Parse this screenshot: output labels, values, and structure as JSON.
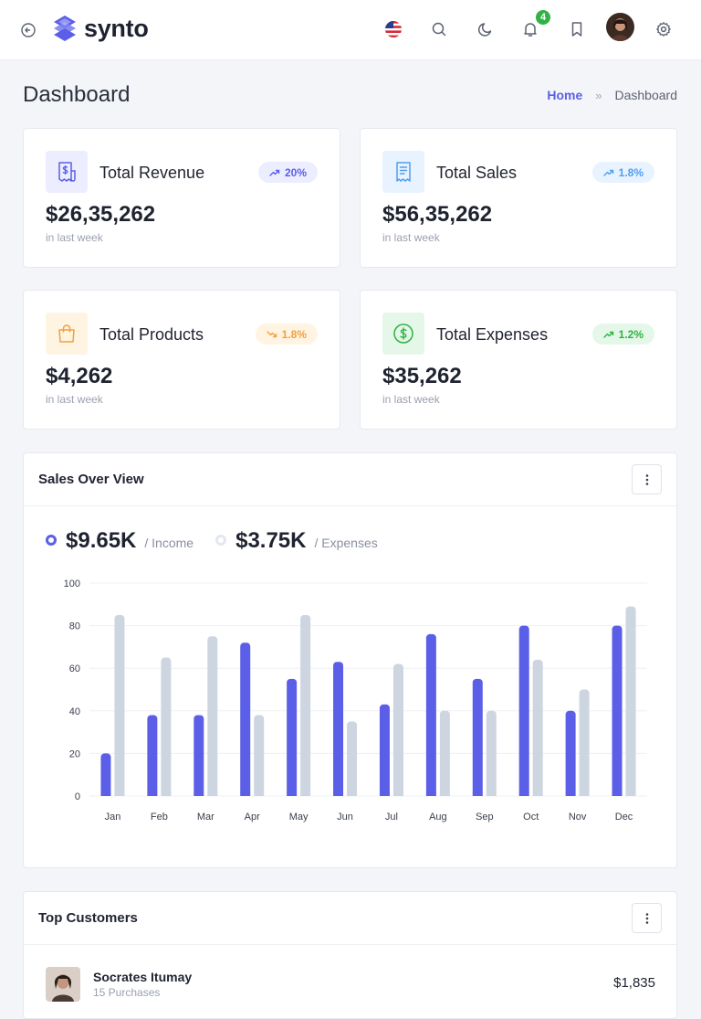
{
  "header": {
    "logo_text": "synto",
    "notification_count": "4",
    "icons": [
      "back-icon",
      "flag-icon",
      "search-icon",
      "moon-icon",
      "bell-icon",
      "bookmark-icon",
      "avatar",
      "gear-icon"
    ]
  },
  "page": {
    "title": "Dashboard",
    "breadcrumb": {
      "home": "Home",
      "separator": "»",
      "current": "Dashboard"
    }
  },
  "stats": [
    {
      "title": "Total Revenue",
      "value": "$26,35,262",
      "sub": "in last week",
      "change": "20%",
      "trend": "up",
      "icon": "receipt-dollar-icon",
      "accent": "#5b5fe8",
      "bg": "#eceeff"
    },
    {
      "title": "Total Sales",
      "value": "$56,35,262",
      "sub": "in last week",
      "change": "1.8%",
      "trend": "up",
      "icon": "receipt-lines-icon",
      "accent": "#4f9ef0",
      "bg": "#e8f3ff"
    },
    {
      "title": "Total Products",
      "value": "$4,262",
      "sub": "in last week",
      "change": "1.8%",
      "trend": "down",
      "icon": "shopping-bag-icon",
      "accent": "#f1a23d",
      "bg": "#fff4e1"
    },
    {
      "title": "Total Expenses",
      "value": "$35,262",
      "sub": "in last week",
      "change": "1.2%",
      "trend": "up",
      "icon": "dollar-circle-icon",
      "accent": "#2fb344",
      "bg": "#e4f7e8"
    }
  ],
  "sales_overview": {
    "title": "Sales Over View",
    "income_value": "$9.65K",
    "income_label": "/ Income",
    "expenses_value": "$3.75K",
    "expenses_label": "/ Expenses"
  },
  "chart_data": {
    "type": "bar",
    "categories": [
      "Jan",
      "Feb",
      "Mar",
      "Apr",
      "May",
      "Jun",
      "Jul",
      "Aug",
      "Sep",
      "Oct",
      "Nov",
      "Dec"
    ],
    "series": [
      {
        "name": "Income",
        "values": [
          20,
          38,
          38,
          72,
          55,
          63,
          43,
          76,
          55,
          80,
          40,
          80
        ],
        "color": "#5b5fe8"
      },
      {
        "name": "Expenses",
        "values": [
          85,
          65,
          75,
          38,
          85,
          35,
          62,
          40,
          40,
          64,
          50,
          89
        ],
        "color": "#cdd5e0"
      }
    ],
    "yticks": [
      0,
      20,
      40,
      60,
      80,
      100
    ],
    "ylim": [
      0,
      100
    ],
    "grid": true,
    "xlabel": "",
    "ylabel": ""
  },
  "top_customers": {
    "title": "Top Customers",
    "rows": [
      {
        "name": "Socrates Itumay",
        "sub": "15 Purchases",
        "amount": "$1,835"
      }
    ]
  }
}
